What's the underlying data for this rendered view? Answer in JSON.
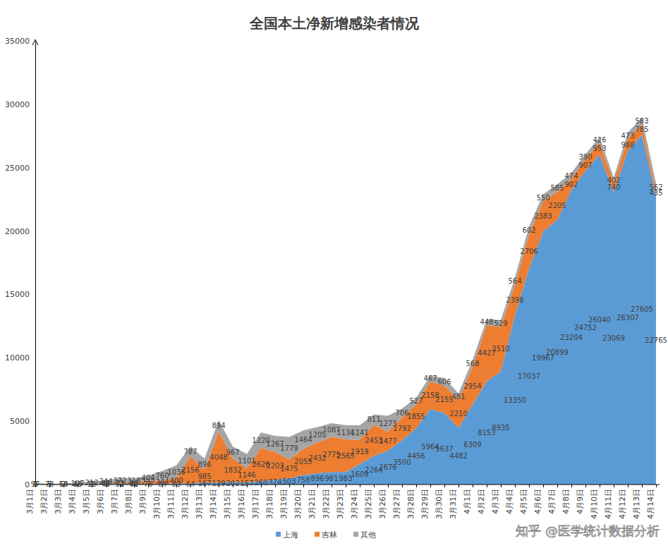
{
  "chart_data": {
    "type": "area",
    "stacked": true,
    "title": "全国本土净新增感染者情况",
    "annotations": [
      "知乎 @医学统计数据分析"
    ],
    "categories": [
      "3月1日",
      "3月2日",
      "3月3日",
      "3月4日",
      "3月5日",
      "3月6日",
      "3月7日",
      "3月8日",
      "3月9日",
      "3月10日",
      "3月11日",
      "3月12日",
      "3月13日",
      "3月14日",
      "3月15日",
      "3月16日",
      "3月17日",
      "3月18日",
      "3月19日",
      "3月20日",
      "3月21日",
      "3月22日",
      "3月23日",
      "3月24日",
      "3月25日",
      "3月26日",
      "3月27日",
      "3月28日",
      "3月29日",
      "3月30日",
      "3月31日",
      "4月1日",
      "4月2日",
      "4月3日",
      "4月4日",
      "4月5日",
      "4月6日",
      "4月7日",
      "4月8日",
      "4月9日",
      "4月10日",
      "4月11日",
      "4月12日",
      "4月13日",
      "4月14日"
    ],
    "series": [
      {
        "name": "上海",
        "color": "#5b9bd5",
        "values": [
          1,
          3,
          14,
          16,
          3,
          45,
          51,
          62,
          76,
          64,
          83,
          64,
          167,
          139,
          202,
          157,
          260,
          374,
          503,
          758,
          896,
          981,
          983,
          1609,
          2264,
          2676,
          3500,
          4456,
          5964,
          5637,
          4482,
          6309,
          8153,
          8935,
          13350,
          17037,
          19967,
          20899,
          23204,
          24752,
          26040,
          23069,
          26307,
          27605,
          22765
        ]
      },
      {
        "name": "吉林",
        "color": "#ed7d31",
        "values": [
          0,
          5,
          2,
          40,
          13,
          65,
          72,
          88,
          232,
          244,
          400,
          2156,
          985,
          4048,
          1832,
          1146,
          2626,
          2203,
          1475,
          2055,
          2432,
          2775,
          2565,
          1919,
          2453,
          1477,
          1792,
          1855,
          2158,
          2155,
          2210,
          2954,
          4427,
          3510,
          2398,
          2706,
          2383,
          2205,
          902,
          907,
          953,
          740,
          988,
          785,
          435
        ]
      },
      {
        "name": "其他",
        "color": "#a5a5a5",
        "values": [
          97,
          78,
          50,
          107,
          212,
          244,
          372,
          318,
          404,
          760,
          1036,
          787,
          896,
          894,
          967,
          1101,
          1220,
          1267,
          1779,
          1464,
          1205,
          1087,
          1134,
          1141,
          811,
          1273,
          706,
          527,
          467,
          606,
          481,
          568,
          448,
          529,
          564,
          602,
          550,
          585,
          474,
          390,
          426,
          402,
          473,
          583,
          562
        ]
      }
    ],
    "ylim": [
      0,
      35000
    ],
    "yticks": [
      0,
      5000,
      10000,
      15000,
      20000,
      25000,
      30000,
      35000
    ],
    "grid": false,
    "legend": "bottom",
    "data_labels": true
  }
}
